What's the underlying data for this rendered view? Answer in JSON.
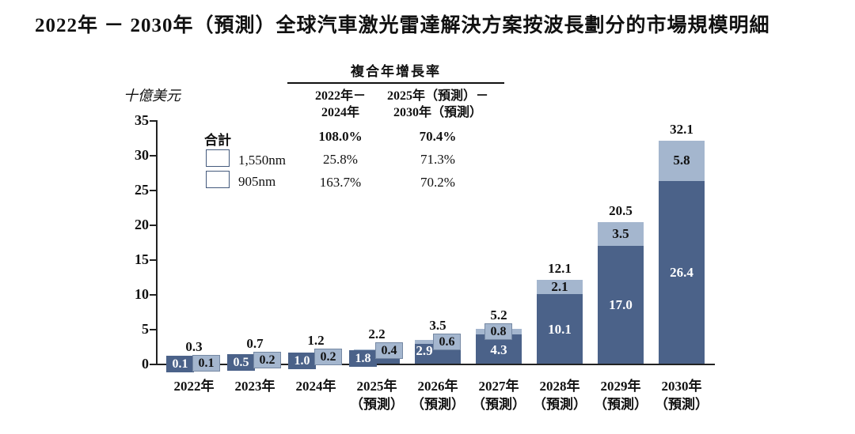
{
  "title": "2022年 － 2030年（預測）全球汽車激光雷達解決方案按波長劃分的市場規模明細",
  "y_axis": {
    "unit_label": "十億美元",
    "ticks": [
      "0",
      "5",
      "10",
      "15",
      "20",
      "25",
      "30",
      "35"
    ]
  },
  "legend": {
    "total_label": "合計",
    "items": [
      {
        "label": "1,550nm",
        "color": "#a4b6ce"
      },
      {
        "label": "905nm",
        "color": "#4b6289"
      }
    ]
  },
  "cagr_table": {
    "title": "複合年增長率",
    "col_headers": [
      "2022年－\n2024年",
      "2025年（預測）－\n2030年（預測）"
    ],
    "rows": [
      {
        "label": "合計",
        "values": [
          "108.0%",
          "70.4%"
        ],
        "bold": true
      },
      {
        "label": "1,550nm",
        "values": [
          "25.8%",
          "71.3%"
        ],
        "bold": false
      },
      {
        "label": "905nm",
        "values": [
          "163.7%",
          "70.2%"
        ],
        "bold": false
      }
    ]
  },
  "chart_data": {
    "type": "bar",
    "stacked": true,
    "title": "2022年－2030年（預測）全球汽車激光雷達解決方案按波長劃分的市場規模明細",
    "ylabel": "十億美元",
    "ylim": [
      0,
      35
    ],
    "y_tick_step": 5,
    "grid": false,
    "legend_position": "upper-left",
    "categories": [
      "2022年",
      "2023年",
      "2024年",
      "2025年\n（預測）",
      "2026年\n（預測）",
      "2027年\n（預測）",
      "2028年\n（預測）",
      "2029年\n（預測）",
      "2030年\n（預測）"
    ],
    "series": [
      {
        "name": "905nm",
        "color": "#4b6289",
        "values": [
          0.1,
          0.5,
          1.0,
          1.8,
          2.9,
          4.3,
          10.1,
          17.0,
          26.4
        ],
        "labels": [
          "0.1",
          "0.5",
          "1.0",
          "1.8",
          "2.9",
          "4.3",
          "10.1",
          "17.0",
          "26.4"
        ]
      },
      {
        "name": "1,550nm",
        "color": "#a4b6ce",
        "values": [
          0.1,
          0.2,
          0.2,
          0.4,
          0.6,
          0.8,
          2.1,
          3.5,
          5.8
        ],
        "labels": [
          "0.1",
          "0.2",
          "0.2",
          "0.4",
          "0.6",
          "0.8",
          "2.1",
          "3.5",
          "5.8"
        ]
      }
    ],
    "totals": [
      0.3,
      0.7,
      1.2,
      2.2,
      3.5,
      5.2,
      12.1,
      20.5,
      32.1
    ],
    "total_labels": [
      "0.3",
      "0.7",
      "1.2",
      "2.2",
      "3.5",
      "5.2",
      "12.1",
      "20.5",
      "32.1"
    ]
  }
}
